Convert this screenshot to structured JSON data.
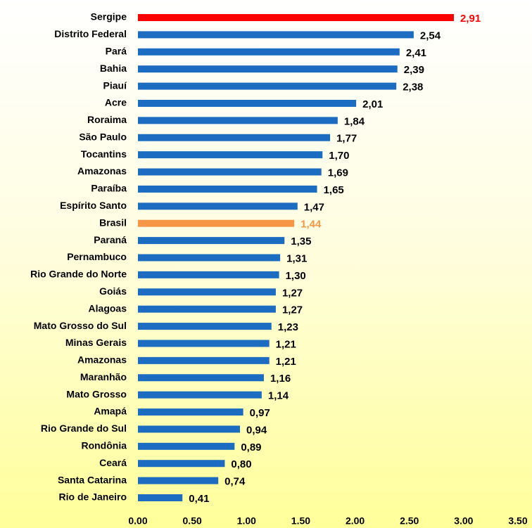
{
  "chart_data": {
    "type": "hbar",
    "categories": [
      "Sergipe",
      "Distrito Federal",
      "Pará",
      "Bahia",
      "Piauí",
      "Acre",
      "Roraima",
      "São Paulo",
      "Tocantins",
      "Amazonas",
      "Paraíba",
      "Espírito Santo",
      "Brasil",
      "Paraná",
      "Pernambuco",
      "Rio Grande do Norte",
      "Goiás",
      "Alagoas",
      "Mato Grosso do Sul",
      "Minas Gerais",
      "Amazonas",
      "Maranhão",
      "Mato Grosso",
      "Amapá",
      "Rio Grande do Sul",
      "Rondônia",
      "Ceará",
      "Santa Catarina",
      "Rio de Janeiro"
    ],
    "values": [
      2.91,
      2.54,
      2.41,
      2.39,
      2.38,
      2.01,
      1.84,
      1.77,
      1.7,
      1.69,
      1.65,
      1.47,
      1.44,
      1.35,
      1.31,
      1.3,
      1.27,
      1.27,
      1.23,
      1.21,
      1.21,
      1.16,
      1.14,
      0.97,
      0.94,
      0.89,
      0.8,
      0.74,
      0.41
    ],
    "value_labels": [
      "2,91",
      "2,54",
      "2,41",
      "2,39",
      "2,38",
      "2,01",
      "1,84",
      "1,77",
      "1,70",
      "1,69",
      "1,65",
      "1,47",
      "1,44",
      "1,35",
      "1,31",
      "1,30",
      "1,27",
      "1,27",
      "1,23",
      "1,21",
      "1,21",
      "1,16",
      "1,14",
      "0,97",
      "0,94",
      "0,89",
      "0,80",
      "0,74",
      "0,41"
    ],
    "color": "#1c6dc2",
    "highlights": {
      "0": "#ff0000",
      "12": "#f79646"
    },
    "xlim": [
      0,
      3.5
    ],
    "xticks": [
      {
        "value": 0,
        "label": "0.00"
      },
      {
        "value": 0.5,
        "label": "0.50"
      },
      {
        "value": 1,
        "label": "1.00"
      },
      {
        "value": 1.5,
        "label": "1.50"
      },
      {
        "value": 2,
        "label": "2.00"
      },
      {
        "value": 2.5,
        "label": "2.50"
      },
      {
        "value": 3,
        "label": "3.00"
      },
      {
        "value": 3.5,
        "label": "3.50"
      }
    ],
    "grid": false
  }
}
